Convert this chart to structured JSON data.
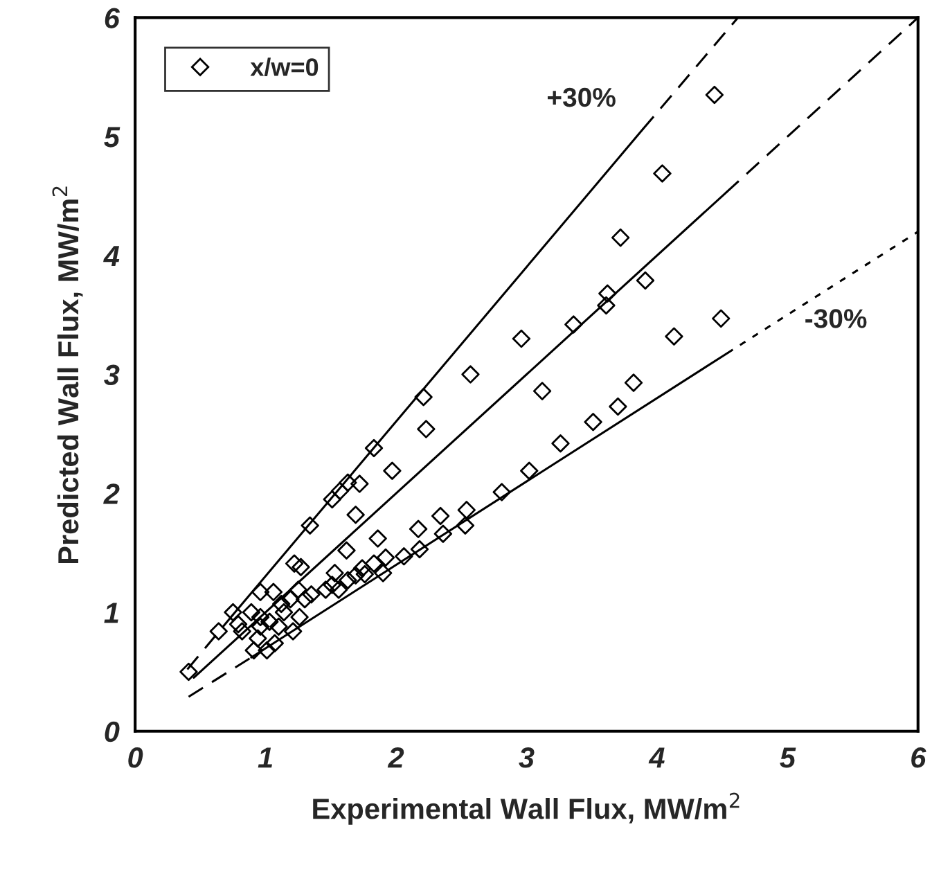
{
  "chart_data": {
    "type": "scatter",
    "xlabel": "Experimental Wall Flux, MW/m$^{2}$",
    "ylabel": "Predicted Wall Flux, MW/m$^{2}$",
    "xlim": [
      0,
      6
    ],
    "ylim": [
      0,
      6
    ],
    "xticks": [
      0,
      1,
      2,
      3,
      4,
      5,
      6
    ],
    "yticks": [
      0,
      1,
      2,
      3,
      4,
      5,
      6
    ],
    "grid": false,
    "legend": "top left",
    "annotations": [
      "+30%",
      "-30%"
    ],
    "series": [
      {
        "name": "x/w=0",
        "type": "scatter",
        "color": "#000000",
        "marker": "diamond",
        "x": [
          4.44,
          4.04,
          3.72,
          3.62,
          3.61,
          3.91,
          3.36,
          2.96,
          2.57,
          2.21,
          2.23,
          3.12,
          4.49,
          4.13,
          3.82,
          3.7,
          3.51,
          3.26,
          3.02,
          2.81,
          2.54,
          2.53,
          2.34,
          2.36,
          2.17,
          2.18,
          1.83,
          1.97,
          1.72,
          1.63,
          1.57,
          1.51,
          1.34,
          1.69,
          1.86,
          1.62,
          2.06,
          1.92,
          1.83,
          1.74,
          1.9,
          1.22,
          1.27,
          1.06,
          0.96,
          1.53,
          1.63,
          1.51,
          1.46,
          1.56,
          1.69,
          1.76,
          1.35,
          1.25,
          1.19,
          1.12,
          0.75,
          0.89,
          0.96,
          1.03,
          0.79,
          0.82,
          0.96,
          1.1,
          1.21,
          1.26,
          1.14,
          1.3,
          0.94,
          0.91,
          1.01,
          1.07,
          0.64,
          0.41
        ],
        "values": [
          5.35,
          4.69,
          4.15,
          3.68,
          3.58,
          3.79,
          3.42,
          3.3,
          3.0,
          2.81,
          2.54,
          2.86,
          3.47,
          3.32,
          2.93,
          2.73,
          2.6,
          2.42,
          2.19,
          2.01,
          1.86,
          1.73,
          1.81,
          1.66,
          1.7,
          1.53,
          2.38,
          2.19,
          2.08,
          2.09,
          2.02,
          1.95,
          1.73,
          1.82,
          1.62,
          1.52,
          1.47,
          1.46,
          1.41,
          1.37,
          1.33,
          1.41,
          1.38,
          1.17,
          1.17,
          1.33,
          1.27,
          1.23,
          1.19,
          1.19,
          1.31,
          1.32,
          1.15,
          1.19,
          1.11,
          1.07,
          1.0,
          1.0,
          0.96,
          0.92,
          0.9,
          0.84,
          0.88,
          0.88,
          0.84,
          0.96,
          1.0,
          1.11,
          0.78,
          0.68,
          0.68,
          0.74,
          0.84,
          0.5
        ]
      },
      {
        "type": "line",
        "color": "#000000",
        "line_style": "dashed",
        "x": [
          0.4,
          0.75
        ],
        "values": [
          0.52,
          0.98
        ]
      },
      {
        "type": "line",
        "color": "#000000",
        "line_style": "solid",
        "x": [
          0.75,
          3.89
        ],
        "values": [
          0.98,
          5.06
        ]
      },
      {
        "type": "line",
        "color": "#000000",
        "line_style": "dashed",
        "x": [
          3.89,
          4.62
        ],
        "values": [
          5.06,
          6.0
        ]
      },
      {
        "type": "line",
        "color": "#000000",
        "line_style": "solid",
        "x": [
          0.45,
          4.53
        ],
        "values": [
          0.45,
          4.53
        ]
      },
      {
        "type": "line",
        "color": "#000000",
        "line_style": "dashed",
        "x": [
          4.53,
          6
        ],
        "values": [
          4.53,
          6
        ]
      },
      {
        "type": "line",
        "color": "#000000",
        "line_style": "dashed",
        "x": [
          0.41,
          0.89
        ],
        "values": [
          0.29,
          0.62
        ]
      },
      {
        "type": "line",
        "color": "#000000",
        "line_style": "solid",
        "x": [
          0.89,
          4.54
        ],
        "values": [
          0.62,
          3.18
        ]
      },
      {
        "type": "line",
        "color": "#000000",
        "line_style": "dotted",
        "x": [
          4.54,
          6
        ],
        "values": [
          3.18,
          4.2
        ]
      }
    ]
  }
}
